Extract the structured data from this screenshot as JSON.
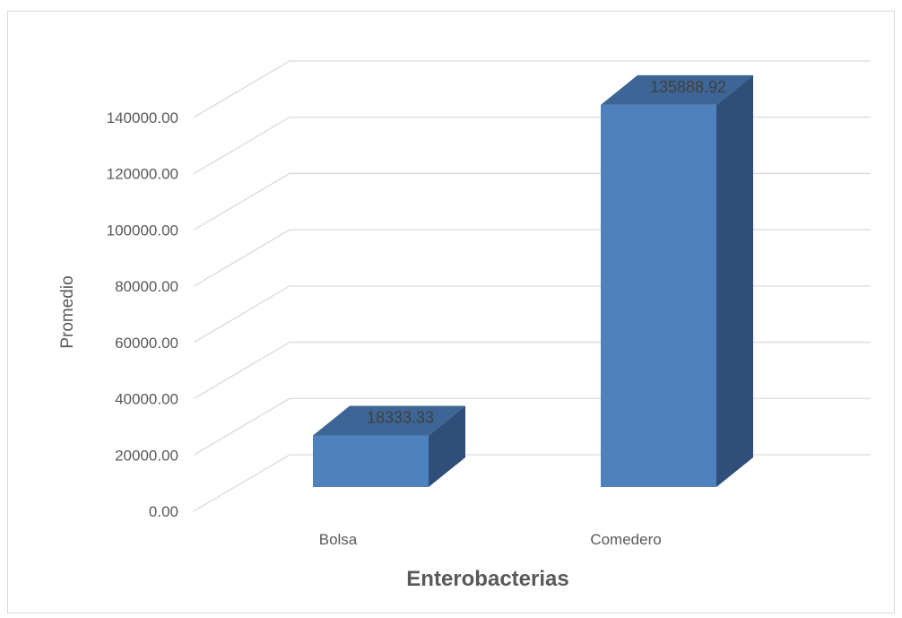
{
  "chart_data": {
    "type": "bar",
    "style": "3d-column",
    "categories": [
      "Bolsa",
      "Comedero"
    ],
    "values": [
      18333.33,
      135888.92
    ],
    "data_labels": [
      "18333.33",
      "135888.92"
    ],
    "xlabel": "Enterobacterias",
    "ylabel": "Promedio",
    "ylim": [
      0,
      140000
    ],
    "y_ticks": [
      0,
      20000,
      40000,
      60000,
      80000,
      100000,
      120000,
      140000
    ],
    "y_tick_labels": [
      "0.00",
      "20000.00",
      "40000.00",
      "60000.00",
      "80000.00",
      "100000.00",
      "120000.00",
      "140000.00"
    ],
    "grid": true,
    "legend": "none",
    "colors": {
      "bar_front": "#4F81BD",
      "bar_top": "#3D6595",
      "bar_side": "#2F4F7A",
      "grid": "#D9D9D9",
      "text": "#595959"
    }
  }
}
